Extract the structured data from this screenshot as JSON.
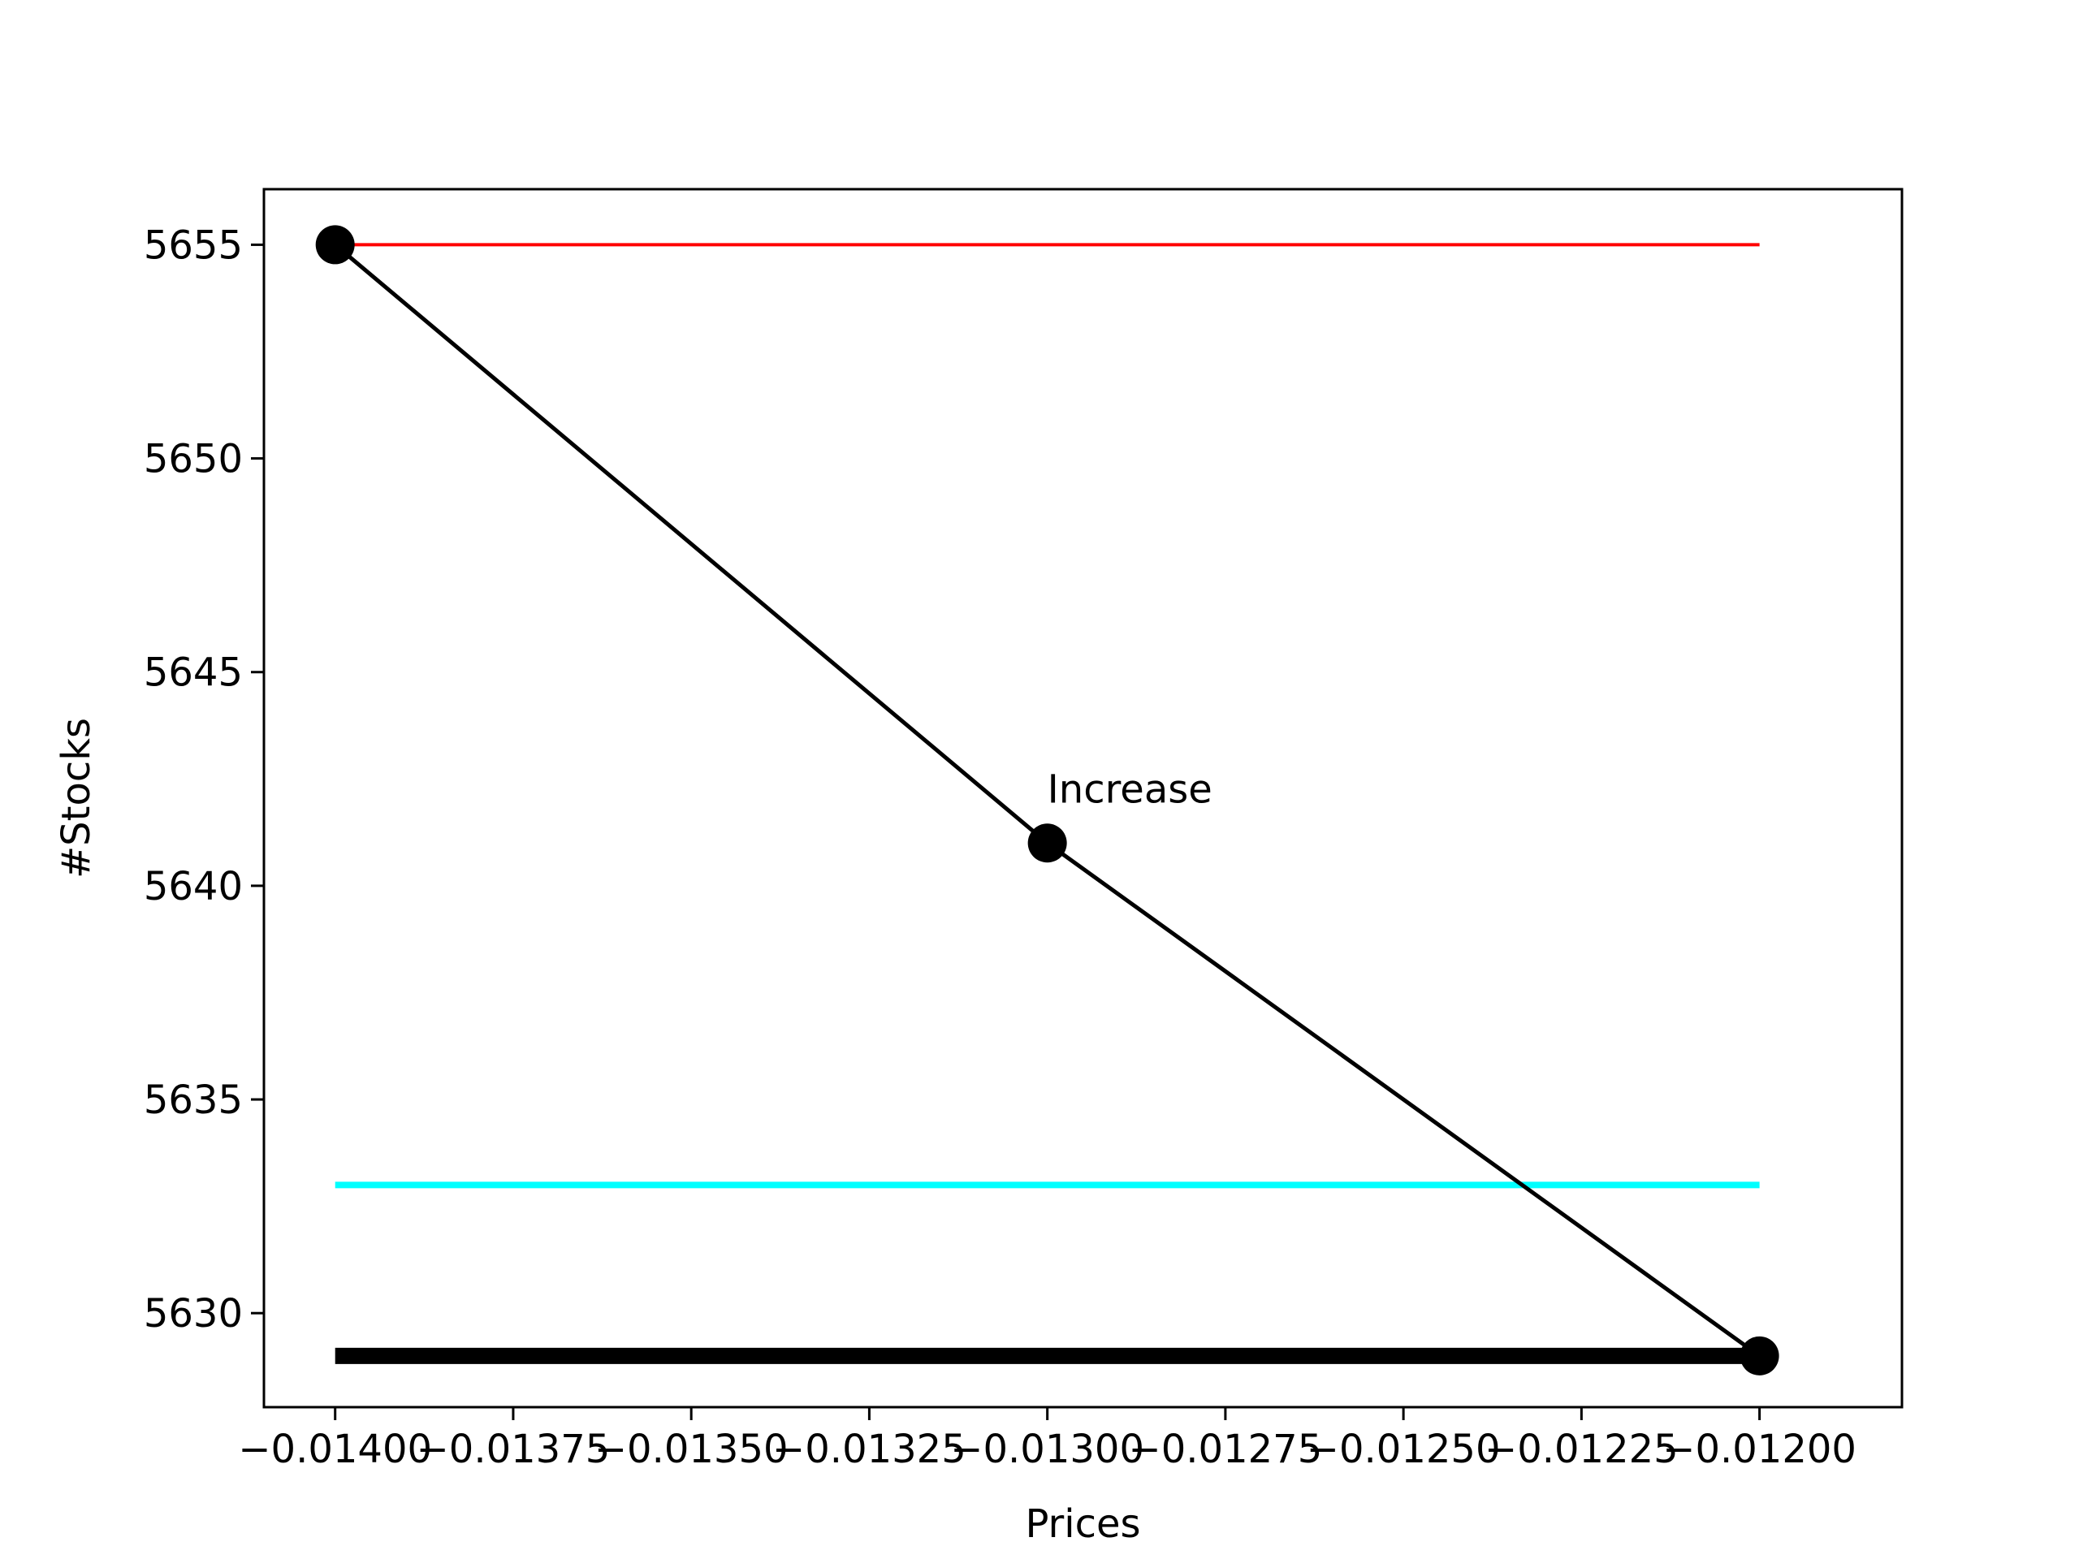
{
  "chart_data": {
    "type": "line",
    "xlabel": "Prices",
    "ylabel": "#Stocks",
    "xlim": [
      -0.0141,
      -0.0118
    ],
    "ylim": [
      5627.8,
      5656.3
    ],
    "x_ticks": [
      -0.014,
      -0.01375,
      -0.0135,
      -0.01325,
      -0.013,
      -0.01275,
      -0.0125,
      -0.01225,
      -0.012
    ],
    "x_tick_labels": [
      "−0.01400",
      "−0.01375",
      "−0.01350",
      "−0.01325",
      "−0.01300",
      "−0.01275",
      "−0.01250",
      "−0.01225",
      "−0.01200"
    ],
    "y_ticks": [
      5630,
      5635,
      5640,
      5645,
      5650,
      5655
    ],
    "y_tick_labels": [
      "5630",
      "5635",
      "5640",
      "5645",
      "5650",
      "5655"
    ],
    "grid": false,
    "series": [
      {
        "x": [
          -0.014,
          -0.013,
          -0.012
        ],
        "y": [
          5655,
          5641,
          5629
        ],
        "color": "#000000",
        "style": "line-with-markers"
      }
    ],
    "hlines": [
      {
        "y": 5655,
        "x": [
          -0.014,
          -0.012
        ],
        "color": "#ff0000",
        "weight": "thin"
      },
      {
        "y": 5633,
        "x": [
          -0.014,
          -0.012
        ],
        "color": "#00ffff",
        "weight": "medium"
      },
      {
        "y": 5629,
        "x": [
          -0.014,
          -0.012
        ],
        "color": "#000000",
        "weight": "thick"
      }
    ],
    "annotations": [
      {
        "text": "Increase",
        "x": -0.013,
        "y": 5641
      }
    ]
  }
}
